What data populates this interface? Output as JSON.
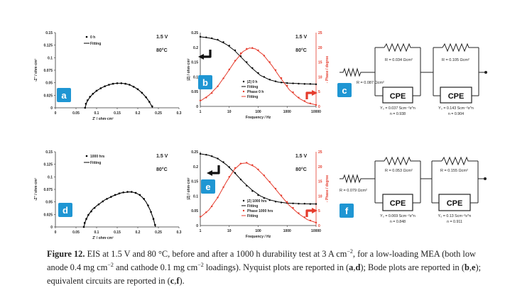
{
  "chart_data": [
    {
      "id": "a",
      "type": "scatter",
      "panel_label": "a",
      "xlabel": "Z' / ohm·cm²",
      "ylabel": "-Z'' / ohm·cm²",
      "xlim": [
        0,
        0.3
      ],
      "ylim": [
        0,
        0.15
      ],
      "x_ticks": [
        "0",
        "0.05",
        "0.1",
        "0.15",
        "0.2",
        "0.25",
        "0.3"
      ],
      "y_ticks": [
        "0",
        "0.025",
        "0.05",
        "0.075",
        "0.1",
        "0.125",
        "0.15"
      ],
      "annotations": [
        "1.5 V",
        "80°C"
      ],
      "series": [
        {
          "name": "0 h",
          "style": "markers",
          "x": [
            0.072,
            0.074,
            0.078,
            0.084,
            0.091,
            0.1,
            0.11,
            0.12,
            0.13,
            0.14,
            0.15,
            0.16,
            0.17,
            0.18,
            0.19,
            0.2,
            0.21,
            0.22,
            0.228,
            0.235
          ],
          "y": [
            0.0,
            0.008,
            0.015,
            0.022,
            0.028,
            0.034,
            0.039,
            0.043,
            0.046,
            0.048,
            0.049,
            0.049,
            0.048,
            0.046,
            0.042,
            0.037,
            0.03,
            0.021,
            0.012,
            0.003
          ]
        },
        {
          "name": "Fitting",
          "style": "line",
          "x": [
            0.072,
            0.076,
            0.082,
            0.09,
            0.1,
            0.11,
            0.12,
            0.13,
            0.14,
            0.15,
            0.16,
            0.17,
            0.18,
            0.19,
            0.2,
            0.21,
            0.22,
            0.228,
            0.236
          ],
          "y": [
            0.0,
            0.011,
            0.019,
            0.027,
            0.034,
            0.039,
            0.043,
            0.046,
            0.048,
            0.049,
            0.049,
            0.048,
            0.046,
            0.042,
            0.037,
            0.03,
            0.021,
            0.012,
            0.0
          ]
        }
      ]
    },
    {
      "id": "b",
      "type": "line",
      "panel_label": "b",
      "xlabel": "Frequency / Hz",
      "ylabel": "|Z| / ohm·cm²",
      "ylabel_right": "- Phase / degree",
      "xscale": "log",
      "xlim": [
        1,
        10000
      ],
      "ylim": [
        0,
        0.25
      ],
      "ylim_right": [
        0,
        25
      ],
      "x_ticks": [
        "1",
        "10",
        "100",
        "1000",
        "10000"
      ],
      "y_ticks": [
        "0",
        "0.05",
        "0.1",
        "0.15",
        "0.2",
        "0.25"
      ],
      "y_ticks_right": [
        "0",
        "5",
        "10",
        "15",
        "20",
        "25"
      ],
      "annotations": [
        "1.5 V",
        "80°C"
      ],
      "series": [
        {
          "name": "|Z| 0 h",
          "axis": "left",
          "style": "markers",
          "color": "#000000",
          "x": [
            1,
            1.6,
            2.5,
            4,
            6.3,
            10,
            16,
            25,
            40,
            63,
            100,
            160,
            250,
            400,
            630,
            1000,
            1600,
            2500,
            4000,
            6300,
            10000
          ],
          "y": [
            0.236,
            0.234,
            0.231,
            0.226,
            0.218,
            0.206,
            0.19,
            0.17,
            0.15,
            0.13,
            0.113,
            0.1,
            0.091,
            0.085,
            0.081,
            0.079,
            0.078,
            0.077,
            0.076,
            0.076,
            0.075
          ]
        },
        {
          "name": "Fitting",
          "axis": "left",
          "style": "line",
          "color": "#000000",
          "x": [
            1,
            2,
            4,
            8,
            15,
            30,
            60,
            120,
            250,
            500,
            1000,
            3000,
            10000
          ],
          "y": [
            0.236,
            0.232,
            0.225,
            0.21,
            0.19,
            0.16,
            0.13,
            0.105,
            0.09,
            0.082,
            0.079,
            0.077,
            0.075
          ]
        },
        {
          "name": "Phase 0 h",
          "axis": "right",
          "style": "markers",
          "color": "#e53b2c",
          "x": [
            1,
            1.6,
            2.5,
            4,
            6.3,
            10,
            16,
            25,
            40,
            63,
            100,
            160,
            250,
            400,
            630,
            1000,
            1600,
            2500,
            4000,
            6300,
            10000
          ],
          "y": [
            2.0,
            3.0,
            4.5,
            6.8,
            9.5,
            12.5,
            15.5,
            18.0,
            19.5,
            19.8,
            19.0,
            17.2,
            15.0,
            12.3,
            9.6,
            7.0,
            4.8,
            3.0,
            1.8,
            1.0,
            0.5
          ]
        },
        {
          "name": "Fitting",
          "axis": "right",
          "style": "line",
          "color": "#e53b2c",
          "x": [
            1,
            2,
            4,
            8,
            15,
            30,
            50,
            80,
            150,
            300,
            600,
            1200,
            2500,
            5000,
            10000
          ],
          "y": [
            1.8,
            3.8,
            6.8,
            11.0,
            15.0,
            18.6,
            19.8,
            19.5,
            17.5,
            13.8,
            9.5,
            5.6,
            2.8,
            1.2,
            0.5
          ]
        }
      ]
    },
    {
      "id": "d",
      "type": "scatter",
      "panel_label": "d",
      "xlabel": "Z' / ohm·cm²",
      "ylabel": "-Z'' / ohm·cm²",
      "xlim": [
        0,
        0.3
      ],
      "ylim": [
        0,
        0.15
      ],
      "x_ticks": [
        "0",
        "0.05",
        "0.1",
        "0.15",
        "0.2",
        "0.25",
        "0.3"
      ],
      "y_ticks": [
        "0",
        "0.025",
        "0.05",
        "0.075",
        "0.1",
        "0.125",
        "0.15"
      ],
      "annotations": [
        "1.5 V",
        "80°C"
      ],
      "series": [
        {
          "name": "1000 hrs",
          "style": "markers",
          "x": [
            0.069,
            0.071,
            0.075,
            0.08,
            0.087,
            0.095,
            0.105,
            0.115,
            0.125,
            0.135,
            0.145,
            0.155,
            0.165,
            0.175,
            0.185,
            0.195,
            0.205,
            0.215,
            0.225,
            0.232,
            0.238,
            0.242
          ],
          "y": [
            0.0,
            0.008,
            0.016,
            0.024,
            0.031,
            0.038,
            0.045,
            0.051,
            0.056,
            0.06,
            0.064,
            0.067,
            0.069,
            0.07,
            0.07,
            0.068,
            0.064,
            0.056,
            0.043,
            0.03,
            0.016,
            0.004
          ]
        },
        {
          "name": "Fitting",
          "style": "line",
          "x": [
            0.069,
            0.073,
            0.08,
            0.09,
            0.1,
            0.11,
            0.12,
            0.13,
            0.14,
            0.15,
            0.16,
            0.17,
            0.18,
            0.19,
            0.2,
            0.21,
            0.22,
            0.23,
            0.238,
            0.243
          ],
          "y": [
            0.0,
            0.012,
            0.024,
            0.035,
            0.042,
            0.048,
            0.054,
            0.058,
            0.062,
            0.065,
            0.068,
            0.069,
            0.07,
            0.069,
            0.066,
            0.06,
            0.05,
            0.034,
            0.016,
            0.0
          ]
        }
      ]
    },
    {
      "id": "e",
      "type": "line",
      "panel_label": "e",
      "xlabel": "Frequency / Hz",
      "ylabel": "|Z| / ohm·cm²",
      "ylabel_right": "- Phase / degree",
      "xscale": "log",
      "xlim": [
        1,
        10000
      ],
      "ylim": [
        0,
        0.25
      ],
      "ylim_right": [
        0,
        25
      ],
      "x_ticks": [
        "1",
        "10",
        "100",
        "1000",
        "10000"
      ],
      "y_ticks": [
        "0",
        "0.05",
        "0.1",
        "0.15",
        "0.2",
        "0.25"
      ],
      "y_ticks_right": [
        "0",
        "5",
        "10",
        "15",
        "20",
        "25"
      ],
      "annotations": [
        "1.5 V",
        "80°C"
      ],
      "series": [
        {
          "name": "|Z| 1000 hrs",
          "axis": "left",
          "style": "markers",
          "color": "#000000",
          "x": [
            1,
            1.6,
            2.5,
            4,
            6.3,
            10,
            16,
            25,
            40,
            63,
            100,
            160,
            250,
            400,
            630,
            1000,
            1600,
            2500,
            4000,
            6300,
            10000
          ],
          "y": [
            0.243,
            0.24,
            0.235,
            0.227,
            0.215,
            0.198,
            0.178,
            0.156,
            0.135,
            0.117,
            0.103,
            0.093,
            0.086,
            0.081,
            0.078,
            0.076,
            0.075,
            0.074,
            0.074,
            0.073,
            0.073
          ]
        },
        {
          "name": "Fitting",
          "axis": "left",
          "style": "line",
          "color": "#000000",
          "x": [
            1,
            2,
            4,
            8,
            15,
            30,
            60,
            120,
            250,
            500,
            1000,
            3000,
            10000
          ],
          "y": [
            0.243,
            0.238,
            0.227,
            0.206,
            0.18,
            0.148,
            0.121,
            0.1,
            0.087,
            0.08,
            0.076,
            0.074,
            0.073
          ]
        },
        {
          "name": "Phase 1000 hrs",
          "axis": "right",
          "style": "markers",
          "color": "#e53b2c",
          "x": [
            1,
            1.6,
            2.5,
            4,
            6.3,
            10,
            16,
            25,
            40,
            63,
            100,
            160,
            250,
            400,
            630,
            1000,
            1600,
            2500,
            4000,
            6300,
            10000
          ],
          "y": [
            3.0,
            4.5,
            6.5,
            9.5,
            13.0,
            16.5,
            19.5,
            21.0,
            21.3,
            20.5,
            19.0,
            17.0,
            14.8,
            12.5,
            10.2,
            8.0,
            6.0,
            4.2,
            2.8,
            1.7,
            1.0
          ]
        },
        {
          "name": "Fitting",
          "axis": "right",
          "style": "line",
          "color": "#e53b2c",
          "x": [
            1,
            2,
            4,
            8,
            15,
            25,
            40,
            80,
            150,
            300,
            600,
            1200,
            2500,
            5000,
            10000
          ],
          "y": [
            2.8,
            5.3,
            9.5,
            14.8,
            19.0,
            21.0,
            21.2,
            19.8,
            17.2,
            13.8,
            10.2,
            6.8,
            4.0,
            2.0,
            1.0
          ]
        }
      ]
    }
  ],
  "circuit_c": {
    "panel_label": "c",
    "r_series": "R = 0.087 Ωcm²",
    "r1": "R = 0.034 Ωcm²",
    "r2": "R = 0.105 Ωcm²",
    "cpe1": "CPE",
    "cpe2": "CPE",
    "cpe1_y": "Y₀ = 0.037 Scm⁻²s^n",
    "cpe1_n": "n = 0.938",
    "cpe2_y": "Y₀ = 0.143 Scm⁻²s^n",
    "cpe2_n": "n = 0.904"
  },
  "circuit_f": {
    "panel_label": "f",
    "r_series": "R = 0.079 Ωcm²",
    "r1": "R = 0.053 Ωcm²",
    "r2": "R = 0.155 Ωcm²",
    "cpe1": "CPE",
    "cpe2": "CPE",
    "cpe1_y": "Y₀ = 0.069 Scm⁻²s^n",
    "cpe1_n": "n = 0.848",
    "cpe2_y": "Y₀ = 0.13 Scm⁻²s^n",
    "cpe2_n": "n = 0.911"
  },
  "caption": {
    "label": "Figure 12.",
    "t1": " EIS at 1.5 V and 80 °C, before and after a 1000 h durability test at 3 A cm",
    "sup1": "−2",
    "t2": ", for a low-loading MEA (both low anode 0.4 mg cm",
    "sup2": "−2",
    "t3": " and cathode 0.1 mg cm",
    "sup3": "−2",
    "t4": " loadings). Nyquist plots are reported in (",
    "b1": "a",
    "c1": ",",
    "b2": "d",
    "t5": "); Bode plots are reported in (",
    "b3": "b",
    "c2": ",",
    "b4": "e",
    "t6": "); equivalent circuits are reported in (",
    "b5": "c",
    "c3": ",",
    "b6": "f",
    "t7": ")."
  }
}
